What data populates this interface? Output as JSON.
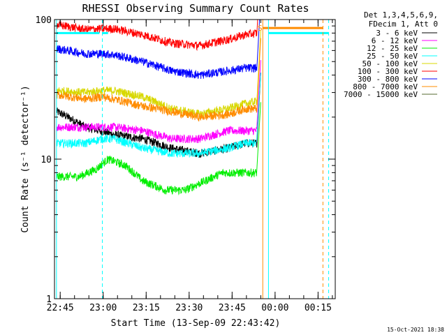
{
  "chart_data": {
    "type": "line",
    "title": "RHESSI Observing Summary Count Rates",
    "xlabel": "Start Time (13-Sep-09 22:43:42)",
    "ylabel": "Count Rate (s⁻¹ detector⁻¹)",
    "yscale": "log",
    "ylim": [
      1,
      100
    ],
    "xlim_minutes": [
      -0.7,
      97.3
    ],
    "x_ticks": [
      "22:45",
      "23:00",
      "23:15",
      "23:30",
      "23:45",
      "00:00",
      "00:15"
    ],
    "x_tick_minutes": [
      1.3,
      16.3,
      31.3,
      46.3,
      61.3,
      76.3,
      91.3
    ],
    "y_ticks": [
      "1",
      "10",
      "100"
    ],
    "y_tick_values": [
      1,
      10,
      100
    ],
    "legend_header": [
      "Det 1,3,4,5,6,9,",
      "FDecim 1, Att 0"
    ],
    "legend_position": "right",
    "annotation": "S",
    "footer_date": "15-Oct-2021 18:38",
    "series": [
      {
        "name": "3 - 6 keV",
        "color": "#000000",
        "x": [
          0,
          10,
          20,
          30,
          40,
          50,
          60,
          66,
          70
        ],
        "values": [
          22,
          17,
          15,
          14,
          12,
          11,
          12,
          13,
          13
        ]
      },
      {
        "name": "6 - 12 keV",
        "color": "#ff00ff",
        "x": [
          0,
          10,
          20,
          30,
          40,
          50,
          60,
          66,
          70
        ],
        "values": [
          17,
          17,
          17,
          16,
          14,
          14,
          16,
          16,
          16
        ]
      },
      {
        "name": "12 - 25 keV",
        "color": "#00ee00",
        "x": [
          0,
          8,
          14,
          18,
          24,
          30,
          38,
          45,
          52,
          58,
          64,
          70
        ],
        "values": [
          7.5,
          7.5,
          8.5,
          10,
          9,
          7,
          6,
          6,
          7,
          8,
          8,
          8
        ]
      },
      {
        "name": "25 - 50 keV",
        "color": "#00ffff",
        "x": [
          0,
          10,
          16,
          20,
          30,
          40,
          50,
          60,
          66,
          70
        ],
        "values": [
          13,
          13,
          14,
          14,
          12,
          11,
          11,
          12,
          13,
          13
        ]
      },
      {
        "name": "50 - 100 keV",
        "color": "#d8d800",
        "x": [
          0,
          10,
          16,
          20,
          30,
          40,
          50,
          60,
          66,
          70
        ],
        "values": [
          31,
          30,
          31,
          31,
          28,
          23,
          21,
          23,
          25,
          26
        ]
      },
      {
        "name": "100 - 300 keV",
        "color": "#ff0000",
        "x": [
          0,
          10,
          16,
          20,
          30,
          40,
          50,
          60,
          66,
          70
        ],
        "values": [
          92,
          85,
          86,
          86,
          78,
          68,
          65,
          72,
          78,
          80
        ]
      },
      {
        "name": "300 - 800 keV",
        "color": "#0000ff",
        "x": [
          0,
          10,
          16,
          20,
          30,
          40,
          50,
          60,
          66,
          70
        ],
        "values": [
          62,
          57,
          57,
          56,
          50,
          43,
          40,
          43,
          45,
          45
        ]
      },
      {
        "name": "800 - 7000 keV",
        "color": "#ff8c00",
        "x": [
          0,
          10,
          16,
          20,
          30,
          40,
          50,
          60,
          66,
          70
        ],
        "values": [
          29,
          27,
          28,
          27,
          24,
          22,
          20,
          21,
          23,
          23
        ]
      },
      {
        "name": "7000 - 15000 keV",
        "color": "#556b2f",
        "x": [],
        "values": []
      }
    ],
    "reference_lines": [
      {
        "kind": "bar_top",
        "color": "#00ffff",
        "x_from": 0,
        "x_to": 15,
        "value": 80
      },
      {
        "kind": "bar_top",
        "color": "#00ffff",
        "x_from": 16,
        "x_to": 18,
        "value": 80
      },
      {
        "kind": "bar_top",
        "color": "#ff8c00",
        "x_from": 72,
        "x_to": 93,
        "value": 87
      },
      {
        "kind": "bar_top",
        "color": "#00ffff",
        "x_from": 74,
        "x_to": 95,
        "value": 80
      }
    ],
    "vertical_lines": [
      {
        "color": "#00ffff",
        "style": "solid",
        "minute": 0
      },
      {
        "color": "#00ffff",
        "style": "dashed",
        "minute": 16
      },
      {
        "color": "#ff8c00",
        "style": "solid",
        "minute": 72
      },
      {
        "color": "#00ffff",
        "style": "solid",
        "minute": 74
      },
      {
        "color": "#ff8c00",
        "style": "dashed",
        "minute": 93
      },
      {
        "color": "#00ffff",
        "style": "dashed",
        "minute": 95
      }
    ]
  }
}
